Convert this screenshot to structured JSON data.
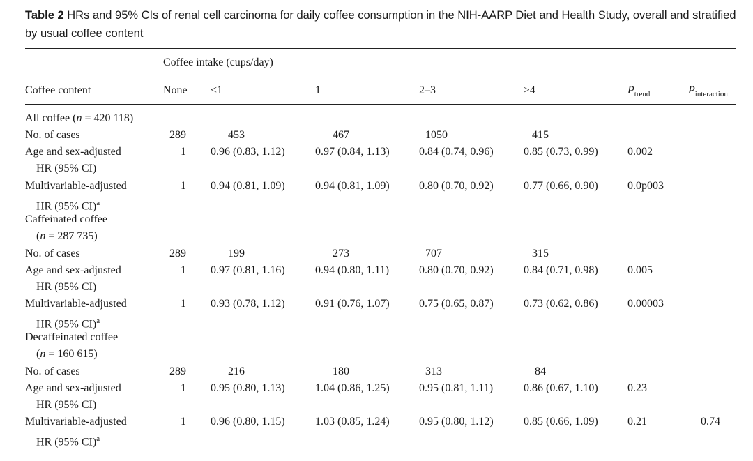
{
  "caption": {
    "label": "Table 2",
    "text": "HRs and 95% CIs of renal cell carcinoma for daily coffee consumption in the NIH-AARP Diet and Health Study, overall and stratified by usual coffee content"
  },
  "header": {
    "coffee_content": "Coffee content",
    "intake_group": "Coffee intake (cups/day)",
    "columns": [
      "None",
      "<1",
      "1",
      "2–3",
      "≥4"
    ],
    "p": "P",
    "p_trend_sub": "trend",
    "p_interaction_sub": "interaction"
  },
  "groups": {
    "all": {
      "label_a": "All coffee (",
      "n_var": "n",
      "label_b": " = 420 118)",
      "cases_label": "No. of cases",
      "cases": [
        "289",
        "453",
        "467",
        "1050",
        "415"
      ],
      "age_label_1": "Age and sex-adjusted",
      "age_label_2": "HR (95% CI)",
      "age": [
        "1",
        "0.96 (0.83, 1.12)",
        "0.97 (0.84, 1.13)",
        "0.84 (0.74, 0.96)",
        "0.85 (0.73, 0.99)"
      ],
      "age_ptrend": "0.002",
      "mv_label_1": "Multivariable-adjusted",
      "mv_label_2": "HR (95% CI)",
      "mv_sup": "a",
      "mv": [
        "1",
        "0.94 (0.81, 1.09)",
        "0.94 (0.81, 1.09)",
        "0.80 (0.70, 0.92)",
        "0.77 (0.66, 0.90)"
      ],
      "mv_ptrend": "0.0p003"
    },
    "caf": {
      "label_1": "Caffeinated coffee",
      "label_a": "(",
      "n_var": "n",
      "label_b": " = 287 735)",
      "cases_label": "No. of cases",
      "cases": [
        "289",
        "199",
        "273",
        "707",
        "315"
      ],
      "age_label_1": "Age and sex-adjusted",
      "age_label_2": "HR (95% CI)",
      "age": [
        "1",
        "0.97 (0.81, 1.16)",
        "0.94 (0.80, 1.11)",
        "0.80 (0.70, 0.92)",
        "0.84 (0.71, 0.98)"
      ],
      "age_ptrend": "0.005",
      "mv_label_1": "Multivariable-adjusted",
      "mv_label_2": "HR (95% CI)",
      "mv_sup": "a",
      "mv": [
        "1",
        "0.93 (0.78, 1.12)",
        "0.91 (0.76, 1.07)",
        "0.75 (0.65, 0.87)",
        "0.73 (0.62, 0.86)"
      ],
      "mv_ptrend": "0.00003"
    },
    "decaf": {
      "label_1": "Decaffeinated coffee",
      "label_a": "(",
      "n_var": "n",
      "label_b": " = 160 615)",
      "cases_label": "No. of cases",
      "cases": [
        "289",
        "216",
        "180",
        "313",
        "84"
      ],
      "age_label_1": "Age and sex-adjusted",
      "age_label_2": "HR (95% CI)",
      "age": [
        "1",
        "0.95 (0.80, 1.13)",
        "1.04 (0.86, 1.25)",
        "0.95 (0.81, 1.11)",
        "0.86 (0.67, 1.10)"
      ],
      "age_ptrend": "0.23",
      "mv_label_1": "Multivariable-adjusted",
      "mv_label_2": "HR (95% CI)",
      "mv_sup": "a",
      "mv": [
        "1",
        "0.96 (0.80, 1.15)",
        "1.03 (0.85, 1.24)",
        "0.95 (0.80, 1.12)",
        "0.85 (0.66, 1.09)"
      ],
      "mv_ptrend": "0.21",
      "mv_pinteraction": "0.74"
    }
  }
}
